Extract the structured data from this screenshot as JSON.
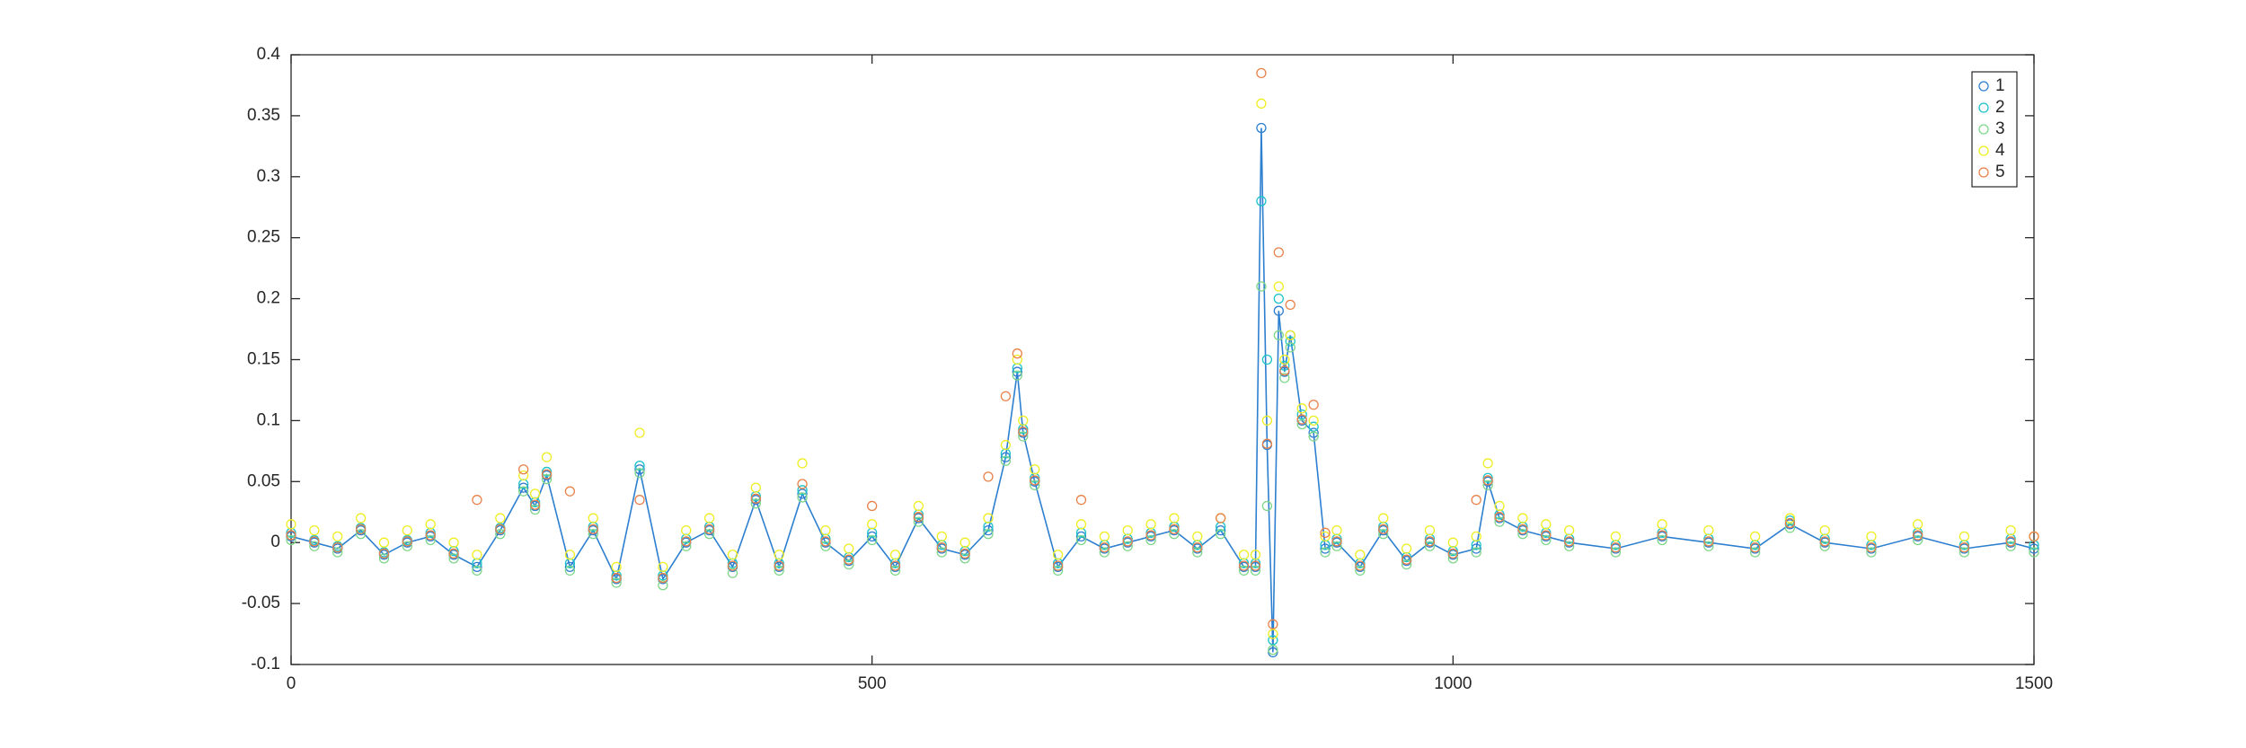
{
  "chart_data": {
    "type": "scatter",
    "x": [
      0,
      20,
      40,
      60,
      80,
      100,
      120,
      140,
      160,
      180,
      200,
      210,
      220,
      240,
      260,
      280,
      300,
      320,
      340,
      360,
      380,
      400,
      420,
      440,
      460,
      480,
      500,
      520,
      540,
      560,
      580,
      600,
      615,
      625,
      630,
      640,
      660,
      680,
      700,
      720,
      740,
      760,
      780,
      800,
      820,
      830,
      835,
      840,
      845,
      850,
      855,
      860,
      870,
      880,
      890,
      900,
      920,
      940,
      960,
      980,
      1000,
      1020,
      1030,
      1040,
      1060,
      1080,
      1100,
      1140,
      1180,
      1220,
      1260,
      1290,
      1320,
      1360,
      1400,
      1440,
      1480,
      1500
    ],
    "series": [
      {
        "name": "1",
        "color": "#2d7fd0",
        "line": true,
        "values": [
          0.005,
          0,
          -0.005,
          0.01,
          -0.01,
          0,
          0.005,
          -0.01,
          -0.02,
          0.01,
          0.045,
          0.03,
          0.055,
          -0.02,
          0.01,
          -0.03,
          0.06,
          -0.03,
          0,
          0.01,
          -0.02,
          0.035,
          -0.02,
          0.04,
          0,
          -0.015,
          0.005,
          -0.02,
          0.02,
          -0.005,
          -0.01,
          0.01,
          0.07,
          0.14,
          0.09,
          0.05,
          -0.02,
          0.005,
          -0.005,
          0,
          0.005,
          0.01,
          -0.005,
          0.01,
          -0.02,
          -0.02,
          0.34,
          0.08,
          -0.09,
          0.19,
          0.14,
          0.17,
          0.1,
          0.09,
          -0.005,
          0,
          -0.02,
          0.01,
          -0.015,
          0,
          -0.01,
          -0.005,
          0.05,
          0.02,
          0.01,
          0.005,
          0,
          -0.005,
          0.005,
          0,
          -0.005,
          0.015,
          0,
          -0.005,
          0.005,
          -0.005,
          0,
          -0.005
        ]
      },
      {
        "name": "2",
        "color": "#1cc3c8",
        "line": false,
        "values": [
          0.008,
          0.002,
          -0.003,
          0.012,
          -0.008,
          0.002,
          0.008,
          -0.007,
          -0.017,
          0.012,
          0.048,
          0.033,
          0.058,
          -0.017,
          0.013,
          -0.027,
          0.063,
          -0.027,
          0.003,
          0.013,
          -0.017,
          0.038,
          -0.017,
          0.043,
          0.003,
          -0.012,
          0.008,
          -0.017,
          0.023,
          -0.002,
          -0.007,
          0.013,
          0.073,
          0.143,
          0.093,
          0.053,
          -0.017,
          0.008,
          -0.002,
          0.003,
          0.008,
          0.013,
          -0.002,
          0.013,
          -0.017,
          -0.017,
          0.28,
          0.15,
          -0.08,
          0.2,
          0.145,
          0.165,
          0.105,
          0.095,
          -0.002,
          0.003,
          -0.017,
          0.013,
          -0.012,
          0.003,
          -0.007,
          -0.002,
          0.053,
          0.023,
          0.013,
          0.008,
          0.003,
          -0.002,
          0.008,
          0.003,
          -0.002,
          0.018,
          0.003,
          -0.002,
          0.008,
          -0.002,
          0.003,
          -0.002
        ]
      },
      {
        "name": "3",
        "color": "#7fd68a",
        "line": false,
        "values": [
          0.002,
          -0.003,
          -0.008,
          0.007,
          -0.013,
          -0.003,
          0.002,
          -0.013,
          -0.023,
          0.007,
          0.042,
          0.027,
          0.052,
          -0.023,
          0.007,
          -0.033,
          0.057,
          -0.035,
          -0.003,
          0.007,
          -0.025,
          0.032,
          -0.023,
          0.037,
          -0.003,
          -0.018,
          0.002,
          -0.023,
          0.017,
          -0.008,
          -0.013,
          0.007,
          0.067,
          0.137,
          0.087,
          0.047,
          -0.023,
          0.002,
          -0.008,
          -0.003,
          0.002,
          0.007,
          -0.008,
          0.007,
          -0.023,
          -0.023,
          0.21,
          0.03,
          -0.088,
          0.17,
          0.135,
          0.16,
          0.097,
          0.087,
          -0.008,
          -0.003,
          -0.023,
          0.007,
          -0.018,
          -0.003,
          -0.013,
          -0.008,
          0.047,
          0.017,
          0.007,
          0.002,
          -0.003,
          -0.008,
          0.002,
          -0.003,
          -0.008,
          0.012,
          -0.003,
          -0.008,
          0.002,
          -0.008,
          -0.003,
          -0.008
        ]
      },
      {
        "name": "4",
        "color": "#eeee22",
        "line": false,
        "values": [
          0.015,
          0.01,
          0.005,
          0.02,
          0,
          0.01,
          0.015,
          0,
          -0.01,
          0.02,
          0.055,
          0.04,
          0.07,
          -0.01,
          0.02,
          -0.02,
          0.09,
          -0.02,
          0.01,
          0.02,
          -0.01,
          0.045,
          -0.01,
          0.065,
          0.01,
          -0.005,
          0.015,
          -0.01,
          0.03,
          0.005,
          0,
          0.02,
          0.08,
          0.15,
          0.1,
          0.06,
          -0.01,
          0.015,
          0.005,
          0.01,
          0.015,
          0.02,
          0.005,
          0.02,
          -0.01,
          -0.01,
          0.36,
          0.1,
          -0.075,
          0.21,
          0.15,
          0.17,
          0.11,
          0.1,
          0.005,
          0.01,
          -0.01,
          0.02,
          -0.005,
          0.01,
          0,
          0.005,
          0.065,
          0.03,
          0.02,
          0.015,
          0.01,
          0.005,
          0.015,
          0.01,
          0.005,
          0.02,
          0.01,
          0.005,
          0.015,
          0.005,
          0.01,
          0.005
        ]
      },
      {
        "name": "5",
        "color": "#e8824a",
        "line": false,
        "values": [
          0.006,
          0.001,
          -0.004,
          0.011,
          -0.009,
          0.001,
          0.006,
          -0.009,
          0.035,
          0.011,
          0.06,
          0.031,
          0.056,
          0.042,
          0.011,
          -0.029,
          0.035,
          -0.029,
          0.001,
          0.011,
          -0.019,
          0.036,
          -0.019,
          0.048,
          0.001,
          -0.014,
          0.03,
          -0.019,
          0.021,
          -0.004,
          -0.009,
          0.054,
          0.12,
          0.155,
          0.091,
          0.051,
          -0.019,
          0.035,
          -0.004,
          0.001,
          0.006,
          0.011,
          -0.004,
          0.02,
          -0.019,
          -0.019,
          0.385,
          0.081,
          -0.067,
          0.238,
          0.141,
          0.195,
          0.101,
          0.113,
          0.008,
          0.001,
          -0.019,
          0.011,
          -0.014,
          0.001,
          -0.009,
          0.035,
          0.051,
          0.021,
          0.011,
          0.006,
          0.001,
          -0.004,
          0.006,
          0.001,
          -0.004,
          0.016,
          0.001,
          -0.004,
          0.006,
          -0.004,
          0.001,
          0.005
        ]
      }
    ],
    "xlim": [
      0,
      1500
    ],
    "xticks": [
      0,
      500,
      1000,
      1500
    ],
    "ylim": [
      -0.1,
      0.4
    ],
    "yticks": [
      -0.1,
      -0.05,
      0,
      0.05,
      0.1,
      0.15,
      0.2,
      0.25,
      0.3,
      0.35,
      0.4
    ],
    "grid": false,
    "legend": "northeast"
  }
}
